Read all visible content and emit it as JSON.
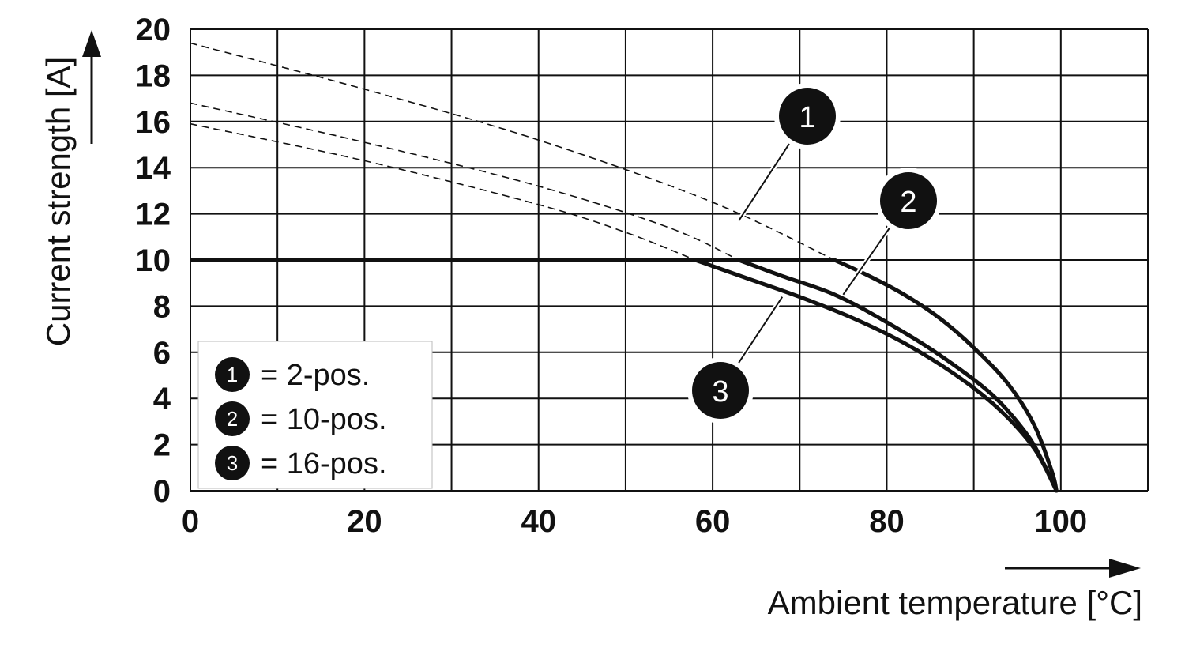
{
  "chart_data": {
    "type": "line",
    "xlabel": "Ambient temperature [°C]",
    "ylabel": "Current strength [A]",
    "xlim": [
      0,
      110
    ],
    "ylim": [
      0,
      20
    ],
    "x_ticks": [
      0,
      20,
      40,
      60,
      80,
      100
    ],
    "y_ticks": [
      0,
      2,
      4,
      6,
      8,
      10,
      12,
      14,
      16,
      18,
      20
    ],
    "x_grid_step": 10,
    "y_grid_step": 2,
    "grid": true,
    "legend_position": "bottom-left",
    "series": [
      {
        "id": "1",
        "name": "2-pos.",
        "legend_label": "= 2-pos.",
        "solid": [
          [
            0,
            10
          ],
          [
            74,
            10
          ],
          [
            78,
            9.3
          ],
          [
            82,
            8.5
          ],
          [
            86,
            7.5
          ],
          [
            90,
            6.2
          ],
          [
            94,
            4.6
          ],
          [
            97,
            2.8
          ],
          [
            99,
            0.8
          ],
          [
            99.5,
            0
          ]
        ],
        "dashed": [
          [
            0,
            19.4
          ],
          [
            20,
            17.4
          ],
          [
            40,
            15.2
          ],
          [
            60,
            12.5
          ],
          [
            74,
            10
          ]
        ]
      },
      {
        "id": "2",
        "name": "10-pos.",
        "legend_label": "= 10-pos.",
        "solid": [
          [
            0,
            10
          ],
          [
            63,
            10
          ],
          [
            68,
            9.3
          ],
          [
            74,
            8.5
          ],
          [
            80,
            7.3
          ],
          [
            86,
            5.9
          ],
          [
            92,
            4.2
          ],
          [
            96,
            2.5
          ],
          [
            98,
            1.2
          ],
          [
            99.5,
            0
          ]
        ],
        "dashed": [
          [
            0,
            16.8
          ],
          [
            20,
            15.1
          ],
          [
            40,
            13.2
          ],
          [
            55,
            11.4
          ],
          [
            63,
            10
          ]
        ]
      },
      {
        "id": "3",
        "name": "16-pos.",
        "legend_label": "= 16-pos.",
        "solid": [
          [
            0,
            10
          ],
          [
            58,
            10
          ],
          [
            64,
            9.2
          ],
          [
            70,
            8.4
          ],
          [
            76,
            7.5
          ],
          [
            82,
            6.4
          ],
          [
            88,
            5
          ],
          [
            93,
            3.5
          ],
          [
            97,
            1.8
          ],
          [
            99.5,
            0
          ]
        ],
        "dashed": [
          [
            0,
            15.9
          ],
          [
            20,
            14.3
          ],
          [
            40,
            12.4
          ],
          [
            50,
            11.2
          ],
          [
            58,
            10
          ]
        ]
      }
    ],
    "annotations": [
      {
        "text": "1",
        "series": "1",
        "point": [
          63,
          11.7
        ]
      },
      {
        "text": "2",
        "series": "2",
        "point": [
          75,
          8.5
        ]
      },
      {
        "text": "3",
        "series": "3",
        "point": [
          68,
          8.4
        ]
      }
    ]
  }
}
